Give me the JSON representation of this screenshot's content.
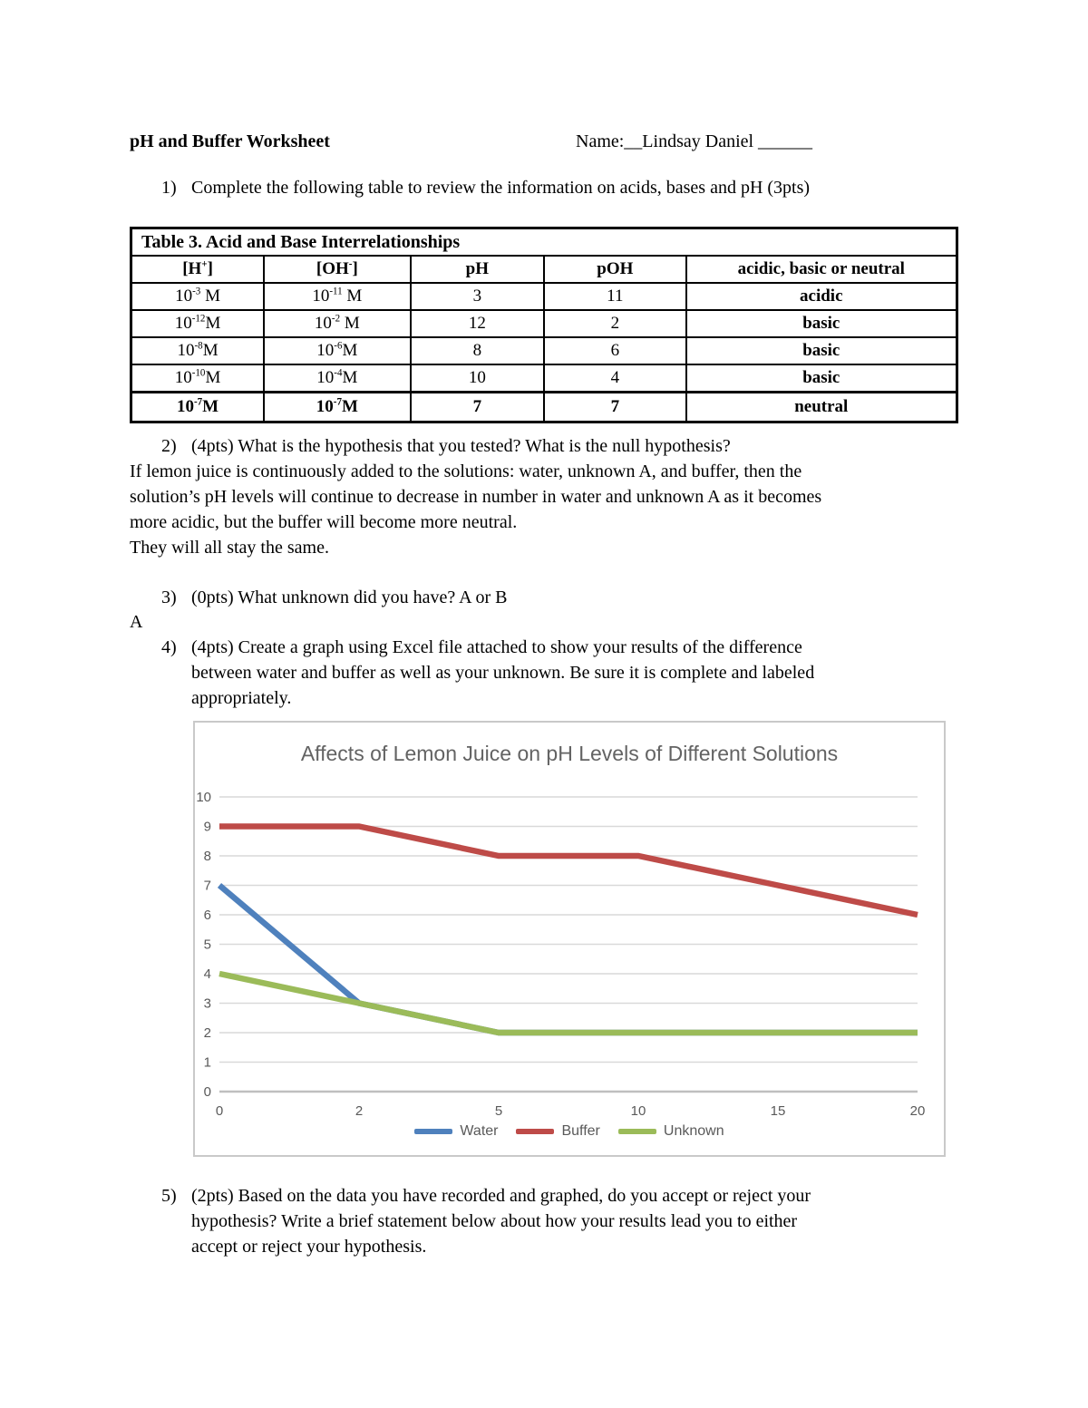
{
  "header": {
    "title": "pH and Buffer Worksheet",
    "name_line": "Name:__Lindsay Daniel ______"
  },
  "questions": {
    "q1": {
      "num": "1)",
      "text": "Complete the following table to review the information on acids, bases and pH (3pts)"
    },
    "q2": {
      "num": "2)",
      "text": "(4pts) What is the hypothesis that you tested?  What is the null hypothesis?",
      "answer_lines": [
        "If lemon juice is continuously added to the solutions: water, unknown A, and buffer, then the",
        "solution’s pH levels will continue to decrease in number in water and unknown A as it becomes",
        "more acidic, but the buffer will become more neutral.",
        "They will all stay the same."
      ]
    },
    "q3": {
      "num": "3)",
      "text": "(0pts) What unknown did you have? A or B",
      "answer": "A"
    },
    "q4": {
      "num": "4)",
      "lines": [
        "(4pts) Create a graph using Excel file attached to show your results of the difference",
        "between water and buffer as well as your unknown. Be sure it is complete and labeled",
        "appropriately."
      ]
    },
    "q5": {
      "num": "5)",
      "lines": [
        "(2pts) Based on the data you have recorded and graphed, do you accept or reject your",
        "hypothesis? Write a brief statement below about how your results lead you to either",
        "accept or reject your hypothesis."
      ]
    }
  },
  "table": {
    "caption": "Table 3. Acid and Base Interrelationships",
    "headers": [
      {
        "pre": "[H",
        "sup": "+",
        "post": "]"
      },
      {
        "pre": "[OH",
        "sup": "-",
        "post": "]"
      },
      {
        "pre": "pH"
      },
      {
        "pre": "pOH"
      },
      {
        "pre": "acidic, basic or neutral"
      }
    ],
    "rows": [
      {
        "h": {
          "m": "10",
          "e": "-3",
          "u": " M"
        },
        "oh": {
          "m": "10",
          "e": "-11",
          "u": " M"
        },
        "ph": "3",
        "poh": "11",
        "kind": "acidic",
        "bold": false
      },
      {
        "h": {
          "m": "10",
          "e": "-12",
          "u": "M"
        },
        "oh": {
          "m": "10",
          "e": "-2",
          "u": " M"
        },
        "ph": "12",
        "poh": "2",
        "kind": "basic",
        "bold": false
      },
      {
        "h": {
          "m": "10",
          "e": "-8",
          "u": "M"
        },
        "oh": {
          "m": "10",
          "e": "-6",
          "u": "M"
        },
        "ph": "8",
        "poh": "6",
        "kind": "basic",
        "bold": false
      },
      {
        "h": {
          "m": "10",
          "e": "-10",
          "u": "M"
        },
        "oh": {
          "m": "10",
          "e": "-4",
          "u": "M"
        },
        "ph": "10",
        "poh": "4",
        "kind": "basic",
        "bold": false
      },
      {
        "h": {
          "m": "10",
          "e": "-7",
          "u": "M"
        },
        "oh": {
          "m": "10",
          "e": "-7",
          "u": "M"
        },
        "ph": "7",
        "poh": "7",
        "kind": "neutral",
        "bold": true
      }
    ]
  },
  "chart_data": {
    "type": "line",
    "title": "Affects of Lemon Juice on pH Levels of Different Solutions",
    "xlabel": "",
    "ylabel": "",
    "categories": [
      "0",
      "2",
      "5",
      "10",
      "15",
      "20"
    ],
    "series": [
      {
        "name": "Water",
        "color": "#4F81BD",
        "values": [
          7,
          3,
          2,
          2,
          2,
          2
        ]
      },
      {
        "name": "Buffer",
        "color": "#BE4B48",
        "values": [
          9,
          9,
          8,
          8,
          7,
          6
        ]
      },
      {
        "name": "Unknown",
        "color": "#9BBB59",
        "values": [
          4,
          3,
          2,
          2,
          2,
          2
        ]
      }
    ],
    "ylim": [
      0,
      10
    ],
    "ytick_step": 1,
    "grid": "horizontal",
    "legend_position": "bottom",
    "colors": {
      "gridline": "#D9D9D9",
      "axis_line": "#BFBFBF",
      "tick_label": "#595959",
      "title": "#636363",
      "legend_label": "#595959",
      "border": "#C9C9C9"
    }
  }
}
